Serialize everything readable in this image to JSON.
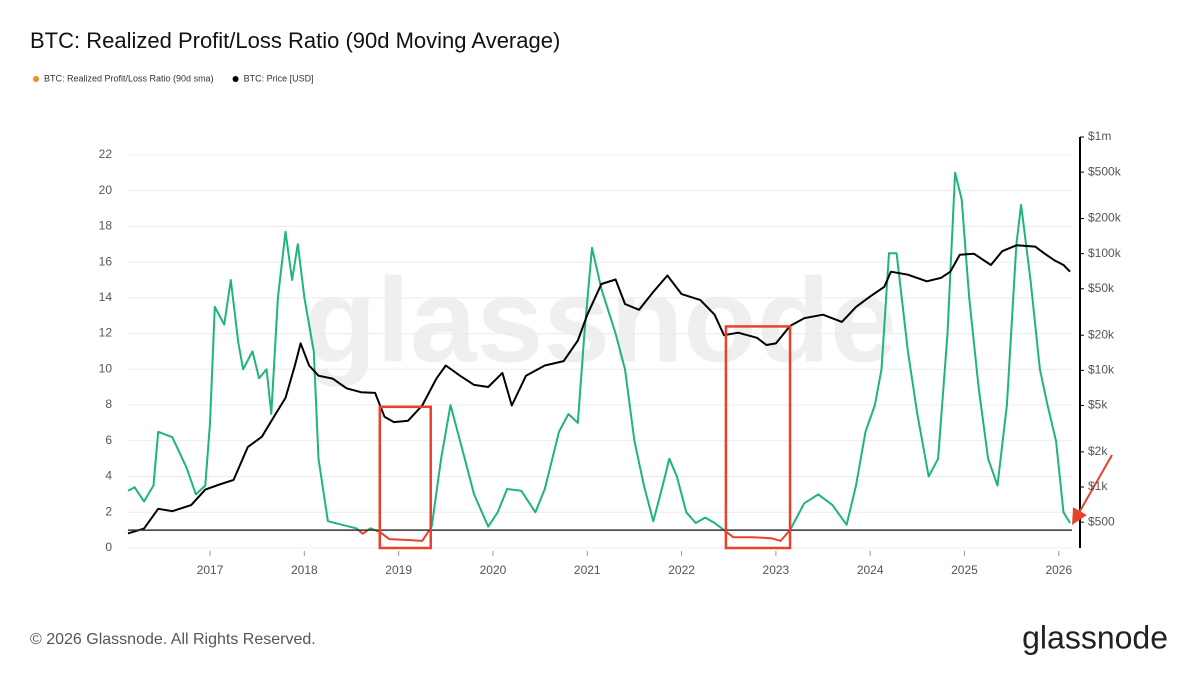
{
  "chart_data": {
    "type": "line",
    "title": "BTC: Realized Profit/Loss Ratio (90d Moving Average)",
    "watermark": "glassnode",
    "footer": "© 2026 Glassnode. All Rights Reserved.",
    "logo": "glassnode",
    "xlim": [
      2016.13,
      2026.14
    ],
    "xticks": [
      2017,
      2018,
      2019,
      2020,
      2021,
      2022,
      2023,
      2024,
      2025,
      2026
    ],
    "ylim": [
      0,
      23
    ],
    "yticks": [
      0,
      2,
      4,
      6,
      8,
      10,
      12,
      14,
      16,
      18,
      20,
      22
    ],
    "y2lim": [
      300,
      1000000
    ],
    "y2scale": "log",
    "y2ticks": [
      {
        "value": 500,
        "label": "$500"
      },
      {
        "value": 1000,
        "label": "$1k"
      },
      {
        "value": 2000,
        "label": "$2k"
      },
      {
        "value": 5000,
        "label": "$5k"
      },
      {
        "value": 10000,
        "label": "$10k"
      },
      {
        "value": 20000,
        "label": "$20k"
      },
      {
        "value": 50000,
        "label": "$50k"
      },
      {
        "value": 100000,
        "label": "$100k"
      },
      {
        "value": 200000,
        "label": "$200k"
      },
      {
        "value": 500000,
        "label": "$500k"
      },
      {
        "value": 1000000,
        "label": "$1m"
      }
    ],
    "grid": true,
    "reference_line": 1,
    "highlights": [
      {
        "x": [
          2018.8,
          2019.34
        ],
        "y": [
          0,
          7.9
        ]
      },
      {
        "x": [
          2022.47,
          2023.15
        ],
        "y": [
          0,
          12.4
        ]
      }
    ],
    "highlight_color": "#e8412c",
    "series": [
      {
        "name": "BTC: Realized Profit/Loss Ratio (90d sma)",
        "color": "#f28c28",
        "line_color": "#1fb57a",
        "below_color": "#e8412c",
        "axis": "y",
        "x": [
          2016.13,
          2016.2,
          2016.3,
          2016.4,
          2016.45,
          2016.6,
          2016.75,
          2016.85,
          2016.95,
          2017.0,
          2017.05,
          2017.15,
          2017.22,
          2017.3,
          2017.35,
          2017.45,
          2017.52,
          2017.6,
          2017.65,
          2017.72,
          2017.8,
          2017.87,
          2017.93,
          2018.0,
          2018.1,
          2018.15,
          2018.25,
          2018.4,
          2018.55,
          2018.62,
          2018.7,
          2018.8,
          2018.9,
          2019.1,
          2019.25,
          2019.35,
          2019.45,
          2019.55,
          2019.65,
          2019.8,
          2019.95,
          2020.05,
          2020.15,
          2020.3,
          2020.45,
          2020.55,
          2020.7,
          2020.8,
          2020.9,
          2020.97,
          2021.05,
          2021.15,
          2021.3,
          2021.4,
          2021.5,
          2021.6,
          2021.7,
          2021.8,
          2021.87,
          2021.95,
          2022.05,
          2022.15,
          2022.25,
          2022.35,
          2022.45,
          2022.55,
          2022.75,
          2022.95,
          2023.05,
          2023.15,
          2023.3,
          2023.45,
          2023.6,
          2023.75,
          2023.85,
          2023.95,
          2024.05,
          2024.12,
          2024.2,
          2024.28,
          2024.4,
          2024.5,
          2024.62,
          2024.72,
          2024.82,
          2024.9,
          2024.97,
          2025.05,
          2025.15,
          2025.25,
          2025.35,
          2025.45,
          2025.55,
          2025.6,
          2025.7,
          2025.8,
          2025.88,
          2025.97,
          2026.05,
          2026.12
        ],
        "values": [
          3.2,
          3.4,
          2.6,
          3.5,
          6.5,
          6.2,
          4.5,
          3.0,
          3.5,
          7.0,
          13.5,
          12.5,
          15.0,
          11.5,
          10.0,
          11.0,
          9.5,
          10.0,
          7.5,
          14.0,
          17.7,
          15.0,
          17.0,
          14.0,
          11.0,
          5.0,
          1.5,
          1.3,
          1.1,
          0.8,
          1.1,
          0.9,
          0.5,
          0.45,
          0.4,
          1.2,
          5.0,
          8.0,
          6.0,
          3.0,
          1.2,
          2.0,
          3.3,
          3.2,
          2.0,
          3.3,
          6.5,
          7.5,
          7.0,
          12.0,
          16.8,
          14.5,
          12.0,
          10.0,
          6.0,
          3.5,
          1.5,
          3.5,
          5.0,
          4.0,
          2.0,
          1.4,
          1.7,
          1.4,
          1.0,
          0.6,
          0.6,
          0.55,
          0.4,
          1.0,
          2.5,
          3.0,
          2.4,
          1.3,
          3.5,
          6.5,
          8.0,
          10.0,
          16.5,
          16.5,
          11.0,
          7.5,
          4.0,
          5.0,
          12.0,
          21.0,
          19.5,
          14.0,
          9.0,
          5.0,
          3.5,
          8.0,
          17.0,
          19.2,
          15.0,
          10.0,
          8.0,
          6.0,
          2.0,
          1.4
        ]
      },
      {
        "name": "BTC: Price [USD]",
        "color": "#000000",
        "axis": "y2",
        "x": [
          2016.13,
          2016.3,
          2016.45,
          2016.6,
          2016.8,
          2016.95,
          2017.1,
          2017.25,
          2017.4,
          2017.55,
          2017.7,
          2017.8,
          2017.9,
          2017.96,
          2018.05,
          2018.15,
          2018.3,
          2018.45,
          2018.6,
          2018.75,
          2018.85,
          2018.95,
          2019.1,
          2019.25,
          2019.4,
          2019.5,
          2019.65,
          2019.8,
          2019.95,
          2020.1,
          2020.2,
          2020.35,
          2020.55,
          2020.75,
          2020.9,
          2021.0,
          2021.15,
          2021.3,
          2021.4,
          2021.55,
          2021.7,
          2021.85,
          2022.0,
          2022.2,
          2022.35,
          2022.45,
          2022.6,
          2022.8,
          2022.9,
          2023.0,
          2023.15,
          2023.3,
          2023.5,
          2023.7,
          2023.85,
          2024.0,
          2024.15,
          2024.22,
          2024.4,
          2024.6,
          2024.75,
          2024.85,
          2024.95,
          2025.1,
          2025.28,
          2025.4,
          2025.55,
          2025.75,
          2025.85,
          2025.95,
          2026.05,
          2026.12
        ],
        "values": [
          400,
          440,
          650,
          620,
          700,
          950,
          1050,
          1150,
          2200,
          2700,
          4300,
          5800,
          11000,
          17000,
          11000,
          9000,
          8500,
          7000,
          6500,
          6400,
          4000,
          3600,
          3700,
          5000,
          8500,
          11000,
          9000,
          7500,
          7200,
          9500,
          5000,
          9000,
          11000,
          12000,
          18000,
          30000,
          55000,
          60000,
          37000,
          33000,
          47000,
          65000,
          45000,
          40000,
          30000,
          20000,
          21000,
          19000,
          16500,
          17000,
          24000,
          28000,
          30000,
          26000,
          35000,
          43000,
          52000,
          70000,
          66000,
          58000,
          62000,
          70000,
          98000,
          100000,
          80000,
          105000,
          118000,
          115000,
          100000,
          88000,
          80000,
          70000
        ]
      }
    ]
  }
}
